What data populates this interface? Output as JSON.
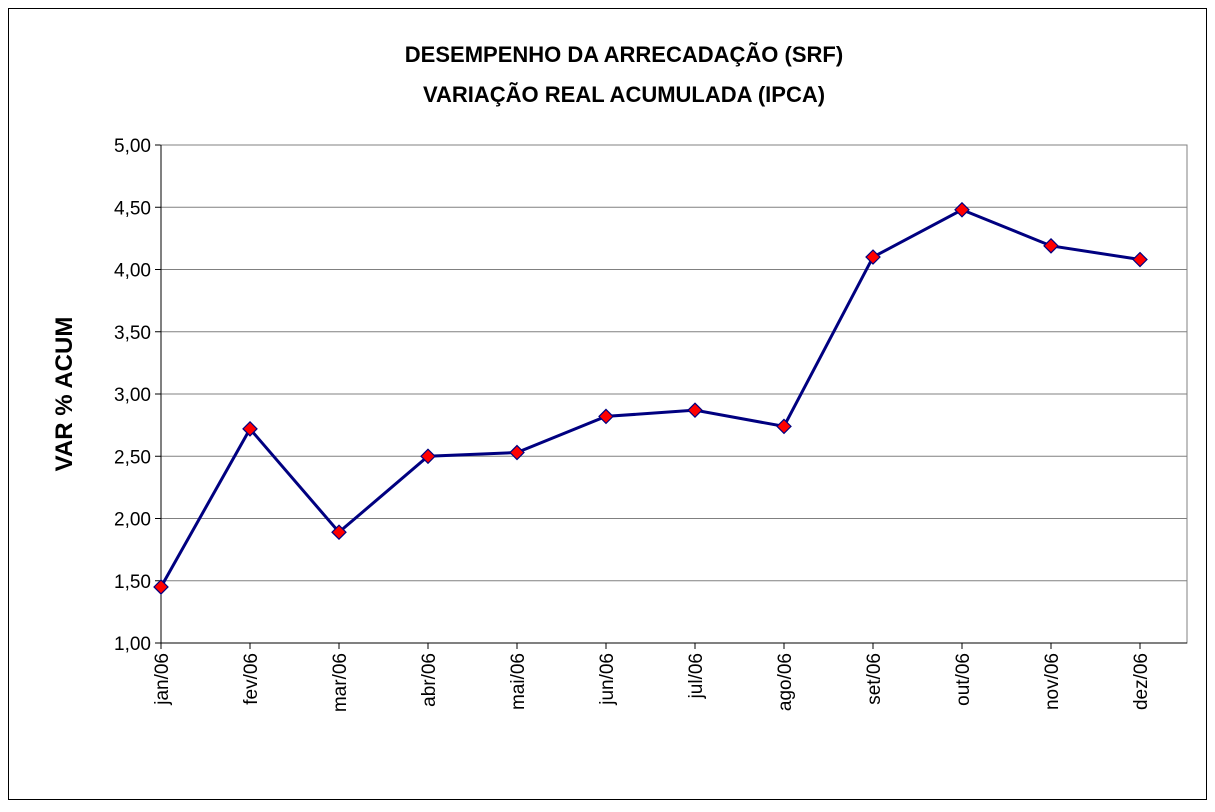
{
  "chart_data": {
    "type": "line",
    "title": "DESEMPENHO DA ARRECADAÇÃO (SRF)",
    "subtitle": "VARIAÇÃO REAL ACUMULADA (IPCA)",
    "y_label": "VAR % ACUM",
    "categories": [
      "jan/06",
      "fev/06",
      "mar/06",
      "abr/06",
      "mai/06",
      "jun/06",
      "jul/06",
      "ago/06",
      "set/06",
      "out/06",
      "nov/06",
      "dez/06"
    ],
    "series": [
      {
        "color": "#000080",
        "marker_color": "#ff0000",
        "values": [
          1.45,
          2.72,
          1.89,
          2.5,
          2.53,
          2.82,
          2.87,
          2.74,
          4.1,
          4.48,
          4.19,
          4.08
        ]
      }
    ],
    "ylim": [
      1,
      5
    ],
    "yticks": [
      {
        "value": 1,
        "label": "1,00"
      },
      {
        "value": 1.5,
        "label": "1,50"
      },
      {
        "value": 2,
        "label": "2,00"
      },
      {
        "value": 2.5,
        "label": "2,50"
      },
      {
        "value": 3,
        "label": "3,00"
      },
      {
        "value": 3.5,
        "label": "3,50"
      },
      {
        "value": 4,
        "label": "4,00"
      },
      {
        "value": 4.5,
        "label": "4,50"
      },
      {
        "value": 5,
        "label": "5,00"
      }
    ],
    "grid": true
  }
}
